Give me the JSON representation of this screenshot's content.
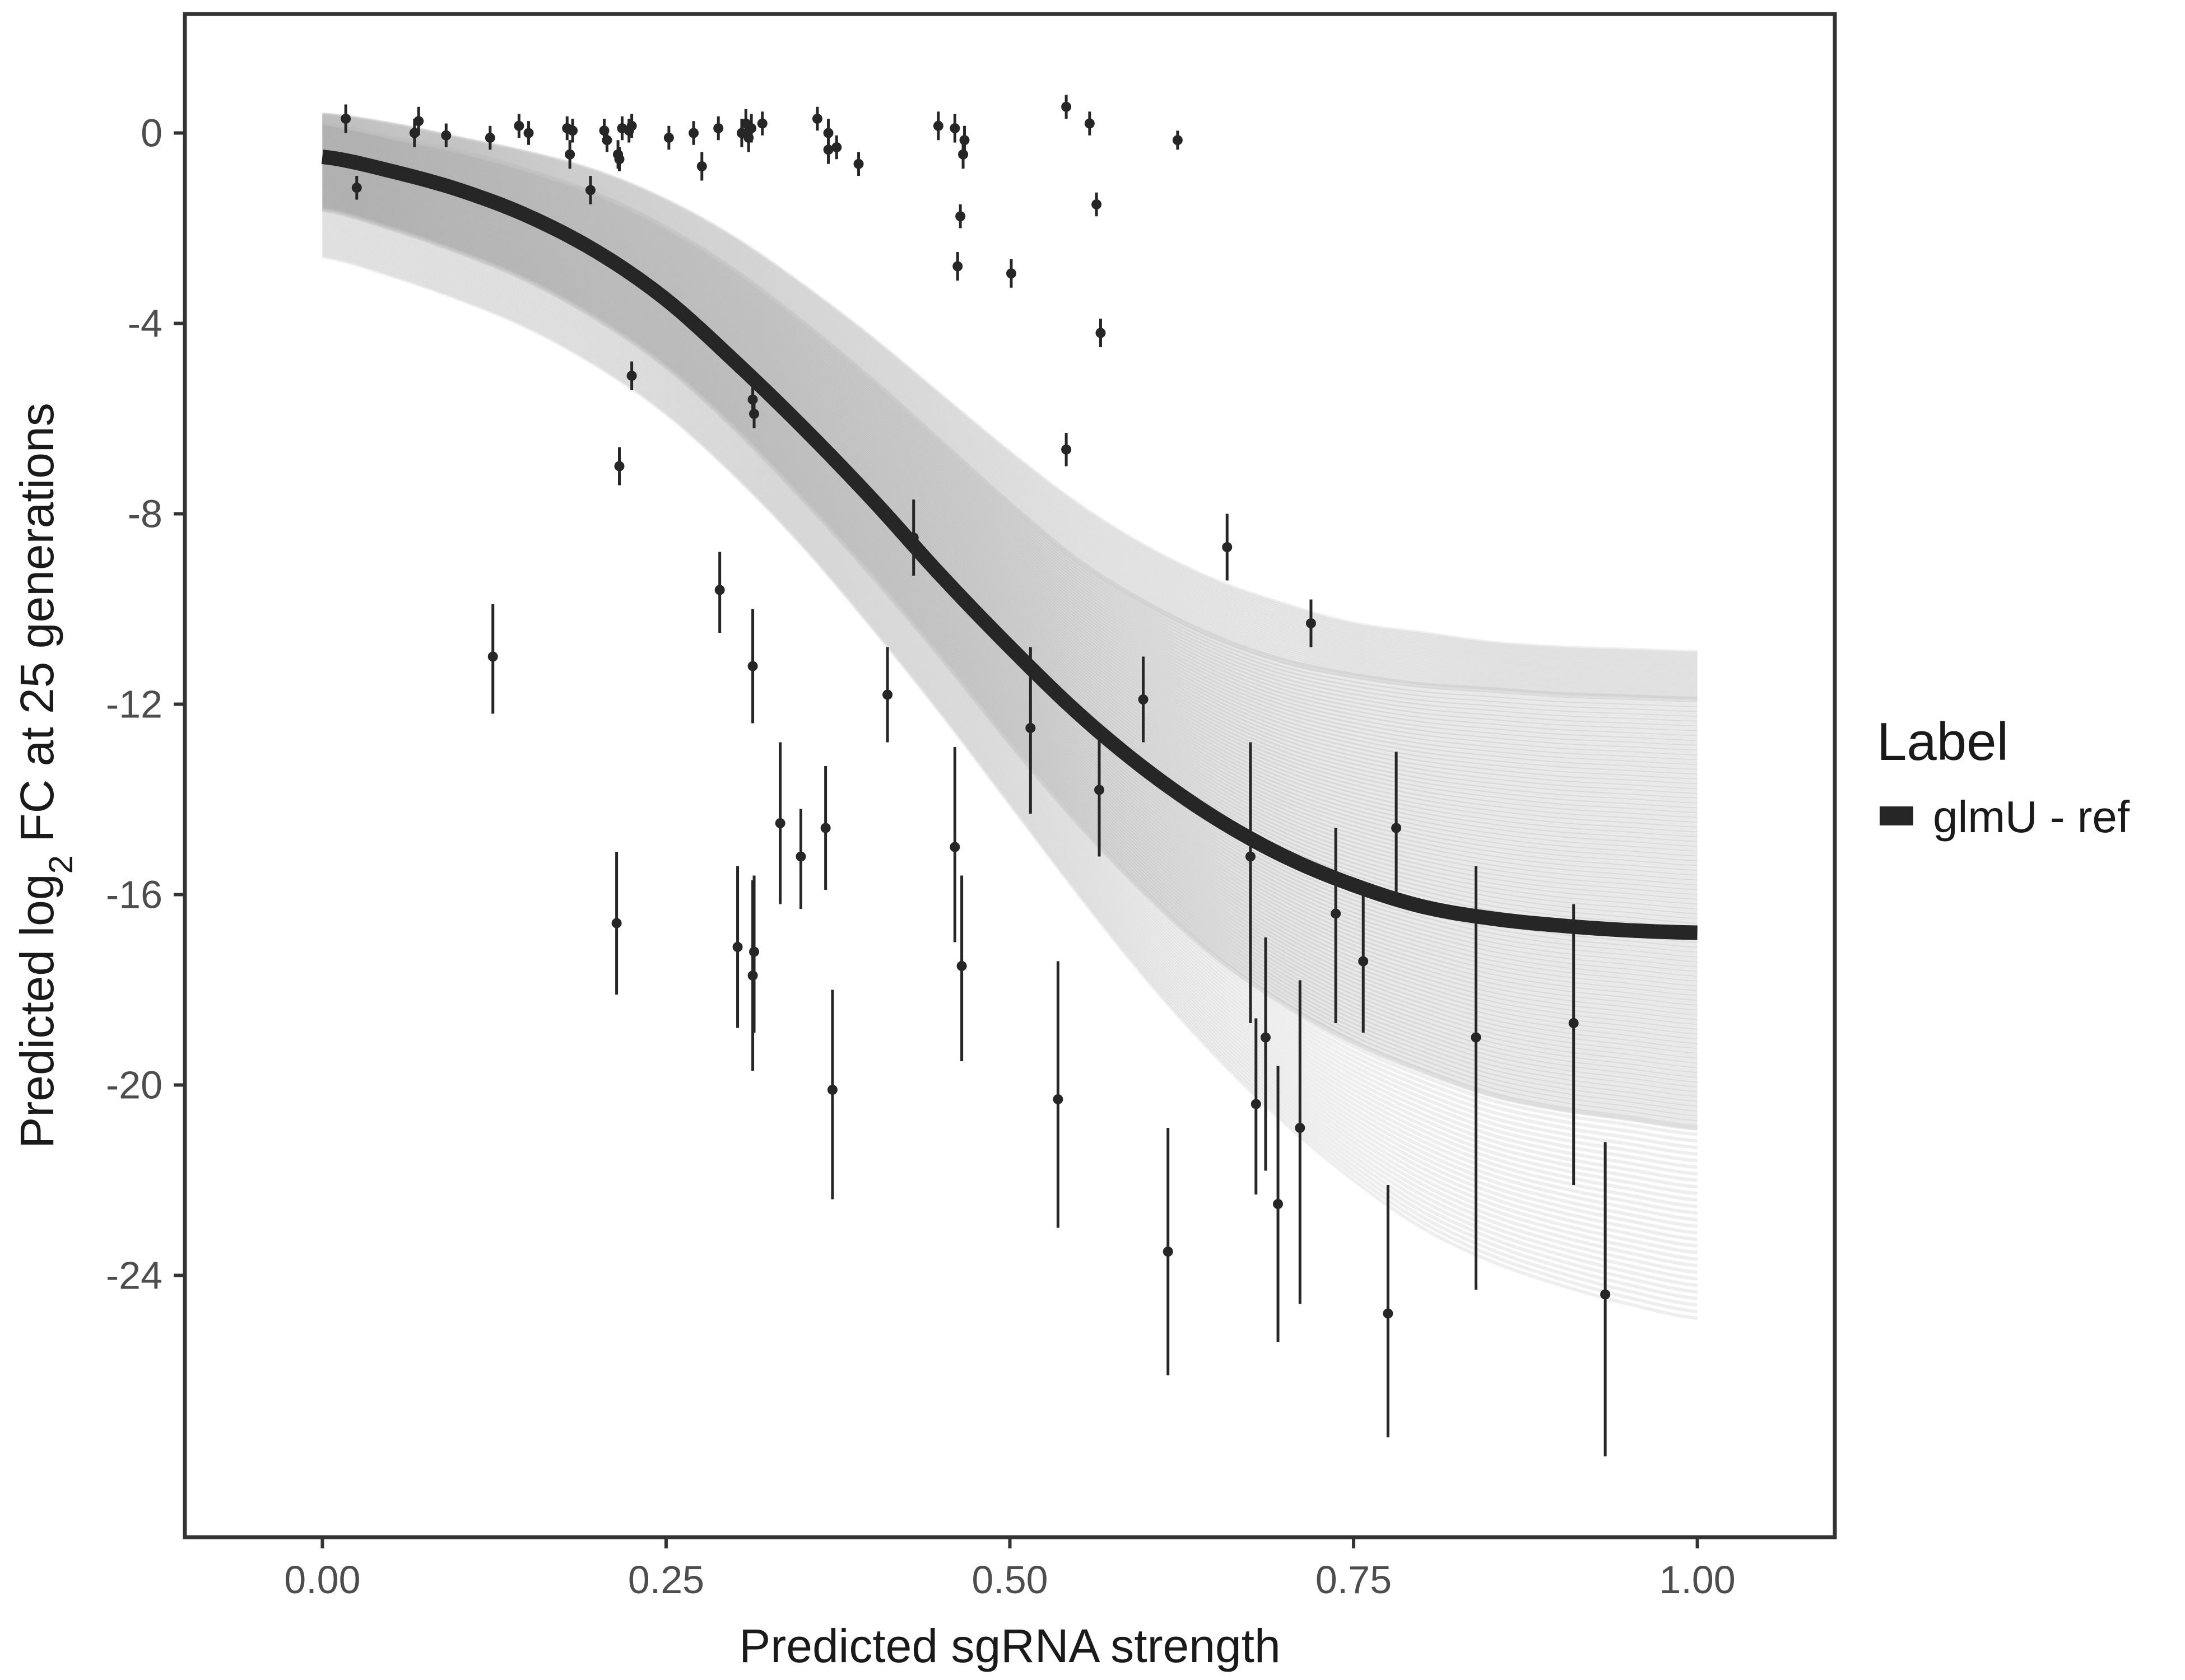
{
  "chart_data": {
    "type": "scatter",
    "xlabel": "Predicted sgRNA strength",
    "ylabel_prefix": "Predicted ",
    "ylabel_log": "log",
    "ylabel_sub": "2",
    "ylabel_suffix": " FC at 25 generations",
    "xlim": [
      -0.1,
      1.1
    ],
    "ylim": [
      -29.5,
      2.5
    ],
    "grid": false,
    "x_ticks": [
      0,
      0.25,
      0.5,
      0.75,
      1
    ],
    "x_tick_labels": [
      "0.00",
      "0.25",
      "0.50",
      "0.75",
      "1.00"
    ],
    "y_ticks": [
      0,
      -4,
      -8,
      -12,
      -16,
      -20,
      -24
    ],
    "y_tick_labels": [
      "0",
      "-4",
      "-8",
      "-12",
      "-16",
      "-20",
      "-24"
    ],
    "legend": {
      "title": "Label",
      "position": "right",
      "entries": [
        {
          "label": "glmU - ref",
          "color": "#262626"
        }
      ]
    },
    "fit": {
      "name": "glmU - ref",
      "color": "#262626",
      "x": [
        0,
        0.05,
        0.1,
        0.15,
        0.2,
        0.25,
        0.3,
        0.35,
        0.4,
        0.45,
        0.5,
        0.55,
        0.6,
        0.65,
        0.7,
        0.75,
        0.8,
        0.85,
        0.9,
        0.95,
        1.0
      ],
      "y": [
        -0.5,
        -0.8,
        -1.2,
        -1.75,
        -2.5,
        -3.5,
        -4.8,
        -6.2,
        -7.7,
        -9.3,
        -10.8,
        -12.2,
        -13.4,
        -14.4,
        -15.2,
        -15.8,
        -16.25,
        -16.5,
        -16.65,
        -16.75,
        -16.8
      ]
    },
    "posterior_band": {
      "color": "#999999",
      "x": [
        0,
        0.05,
        0.1,
        0.15,
        0.2,
        0.25,
        0.3,
        0.35,
        0.4,
        0.45,
        0.5,
        0.55,
        0.6,
        0.65,
        0.7,
        0.75,
        0.8,
        0.85,
        0.9,
        0.95,
        1.0
      ],
      "upper": [
        0.2,
        -0.1,
        -0.4,
        -0.8,
        -1.3,
        -2.0,
        -2.9,
        -4.0,
        -5.2,
        -6.5,
        -7.8,
        -9.0,
        -9.9,
        -10.6,
        -11.1,
        -11.4,
        -11.6,
        -11.7,
        -11.8,
        -11.85,
        -11.9
      ],
      "lower": [
        -1.6,
        -2.0,
        -2.5,
        -3.1,
        -3.9,
        -4.9,
        -6.2,
        -7.7,
        -9.3,
        -11.0,
        -12.8,
        -14.5,
        -16.0,
        -17.3,
        -18.3,
        -19.1,
        -19.7,
        -20.2,
        -20.5,
        -20.7,
        -20.9
      ],
      "outer_upper": [
        0.4,
        0.2,
        -0.1,
        -0.4,
        -0.8,
        -1.4,
        -2.2,
        -3.2,
        -4.3,
        -5.5,
        -6.7,
        -7.8,
        -8.7,
        -9.4,
        -9.9,
        -10.3,
        -10.5,
        -10.7,
        -10.8,
        -10.85,
        -10.9
      ],
      "outer_lower": [
        -2.6,
        -3.0,
        -3.5,
        -4.1,
        -4.9,
        -5.9,
        -7.2,
        -8.7,
        -10.4,
        -12.2,
        -14.1,
        -16.0,
        -17.8,
        -19.4,
        -20.8,
        -22.0,
        -23.0,
        -23.7,
        -24.2,
        -24.6,
        -24.9
      ]
    },
    "points": [
      {
        "x": 0.017,
        "y": 0.3,
        "lo": 0.0,
        "hi": 0.6
      },
      {
        "x": 0.025,
        "y": -1.15,
        "lo": -1.4,
        "hi": -0.9
      },
      {
        "x": 0.067,
        "y": 0.0,
        "lo": -0.3,
        "hi": 0.3
      },
      {
        "x": 0.07,
        "y": 0.25,
        "lo": -0.05,
        "hi": 0.55
      },
      {
        "x": 0.09,
        "y": -0.05,
        "lo": -0.3,
        "hi": 0.2
      },
      {
        "x": 0.122,
        "y": -0.1,
        "lo": -0.35,
        "hi": 0.15
      },
      {
        "x": 0.124,
        "y": -11.0,
        "lo": -12.2,
        "hi": -9.9
      },
      {
        "x": 0.143,
        "y": 0.15,
        "lo": -0.1,
        "hi": 0.4
      },
      {
        "x": 0.15,
        "y": 0.0,
        "lo": -0.25,
        "hi": 0.25
      },
      {
        "x": 0.178,
        "y": 0.1,
        "lo": -0.15,
        "hi": 0.35
      },
      {
        "x": 0.182,
        "y": 0.05,
        "lo": -0.2,
        "hi": 0.3
      },
      {
        "x": 0.18,
        "y": -0.45,
        "lo": -0.75,
        "hi": -0.15
      },
      {
        "x": 0.195,
        "y": -1.2,
        "lo": -1.5,
        "hi": -0.9
      },
      {
        "x": 0.205,
        "y": 0.05,
        "lo": -0.2,
        "hi": 0.3
      },
      {
        "x": 0.207,
        "y": -0.15,
        "lo": -0.4,
        "hi": 0.1
      },
      {
        "x": 0.215,
        "y": -0.45,
        "lo": -0.75,
        "hi": -0.15
      },
      {
        "x": 0.216,
        "y": -0.55,
        "lo": -0.8,
        "hi": -0.3
      },
      {
        "x": 0.218,
        "y": 0.1,
        "lo": -0.15,
        "hi": 0.35
      },
      {
        "x": 0.216,
        "y": -7.0,
        "lo": -7.4,
        "hi": -6.6
      },
      {
        "x": 0.214,
        "y": -16.6,
        "lo": -18.1,
        "hi": -15.1
      },
      {
        "x": 0.223,
        "y": 0.05,
        "lo": -0.2,
        "hi": 0.3
      },
      {
        "x": 0.225,
        "y": 0.15,
        "lo": -0.1,
        "hi": 0.4
      },
      {
        "x": 0.225,
        "y": -5.1,
        "lo": -5.4,
        "hi": -4.8
      },
      {
        "x": 0.252,
        "y": -0.1,
        "lo": -0.35,
        "hi": 0.15
      },
      {
        "x": 0.27,
        "y": 0.0,
        "lo": -0.25,
        "hi": 0.25
      },
      {
        "x": 0.276,
        "y": -0.7,
        "lo": -1.0,
        "hi": -0.4
      },
      {
        "x": 0.288,
        "y": 0.1,
        "lo": -0.15,
        "hi": 0.35
      },
      {
        "x": 0.289,
        "y": -9.6,
        "lo": -10.5,
        "hi": -8.8
      },
      {
        "x": 0.302,
        "y": -17.1,
        "lo": -18.8,
        "hi": -15.4
      },
      {
        "x": 0.305,
        "y": 0.0,
        "lo": -0.3,
        "hi": 0.3
      },
      {
        "x": 0.308,
        "y": 0.2,
        "lo": -0.1,
        "hi": 0.5
      },
      {
        "x": 0.31,
        "y": -0.1,
        "lo": -0.4,
        "hi": 0.2
      },
      {
        "x": 0.312,
        "y": 0.1,
        "lo": -0.2,
        "hi": 0.4
      },
      {
        "x": 0.313,
        "y": -5.6,
        "lo": -5.9,
        "hi": -5.3
      },
      {
        "x": 0.314,
        "y": -5.9,
        "lo": -6.2,
        "hi": -5.6
      },
      {
        "x": 0.313,
        "y": -11.2,
        "lo": -12.4,
        "hi": -10.0
      },
      {
        "x": 0.314,
        "y": -17.2,
        "lo": -18.9,
        "hi": -15.6
      },
      {
        "x": 0.313,
        "y": -17.7,
        "lo": -19.7,
        "hi": -15.7
      },
      {
        "x": 0.32,
        "y": 0.2,
        "lo": -0.05,
        "hi": 0.45
      },
      {
        "x": 0.333,
        "y": -14.5,
        "lo": -16.2,
        "hi": -12.8
      },
      {
        "x": 0.348,
        "y": -15.2,
        "lo": -16.3,
        "hi": -14.2
      },
      {
        "x": 0.36,
        "y": 0.3,
        "lo": 0.05,
        "hi": 0.55
      },
      {
        "x": 0.366,
        "y": -14.6,
        "lo": -15.9,
        "hi": -13.3
      },
      {
        "x": 0.368,
        "y": 0.0,
        "lo": -0.3,
        "hi": 0.3
      },
      {
        "x": 0.368,
        "y": -0.35,
        "lo": -0.65,
        "hi": -0.05
      },
      {
        "x": 0.371,
        "y": -20.1,
        "lo": -22.4,
        "hi": -18.0
      },
      {
        "x": 0.374,
        "y": -0.3,
        "lo": -0.55,
        "hi": -0.05
      },
      {
        "x": 0.39,
        "y": -0.65,
        "lo": -0.9,
        "hi": -0.4
      },
      {
        "x": 0.411,
        "y": -11.8,
        "lo": -12.8,
        "hi": -10.8
      },
      {
        "x": 0.43,
        "y": -8.5,
        "lo": -9.3,
        "hi": -7.7
      },
      {
        "x": 0.448,
        "y": 0.15,
        "lo": -0.15,
        "hi": 0.45
      },
      {
        "x": 0.46,
        "y": 0.1,
        "lo": -0.2,
        "hi": 0.4
      },
      {
        "x": 0.46,
        "y": -15.0,
        "lo": -17.0,
        "hi": -12.9
      },
      {
        "x": 0.462,
        "y": -2.8,
        "lo": -3.1,
        "hi": -2.5
      },
      {
        "x": 0.464,
        "y": -1.75,
        "lo": -2.0,
        "hi": -1.5
      },
      {
        "x": 0.465,
        "y": -17.5,
        "lo": -19.5,
        "hi": -15.6
      },
      {
        "x": 0.467,
        "y": -0.15,
        "lo": -0.45,
        "hi": 0.15
      },
      {
        "x": 0.466,
        "y": -0.45,
        "lo": -0.75,
        "hi": -0.15
      },
      {
        "x": 0.501,
        "y": -2.95,
        "lo": -3.25,
        "hi": -2.65
      },
      {
        "x": 0.515,
        "y": -12.5,
        "lo": -14.3,
        "hi": -10.8
      },
      {
        "x": 0.535,
        "y": -20.3,
        "lo": -23.0,
        "hi": -17.4
      },
      {
        "x": 0.541,
        "y": 0.55,
        "lo": 0.3,
        "hi": 0.8
      },
      {
        "x": 0.541,
        "y": -6.65,
        "lo": -7.0,
        "hi": -6.3
      },
      {
        "x": 0.558,
        "y": 0.2,
        "lo": -0.05,
        "hi": 0.45
      },
      {
        "x": 0.563,
        "y": -1.5,
        "lo": -1.75,
        "hi": -1.25
      },
      {
        "x": 0.565,
        "y": -13.8,
        "lo": -15.2,
        "hi": -12.6
      },
      {
        "x": 0.566,
        "y": -4.2,
        "lo": -4.5,
        "hi": -3.9
      },
      {
        "x": 0.597,
        "y": -11.9,
        "lo": -12.8,
        "hi": -11.0
      },
      {
        "x": 0.615,
        "y": -23.5,
        "lo": -26.1,
        "hi": -20.9
      },
      {
        "x": 0.622,
        "y": -0.15,
        "lo": -0.35,
        "hi": 0.05
      },
      {
        "x": 0.658,
        "y": -8.7,
        "lo": -9.4,
        "hi": -8.0
      },
      {
        "x": 0.675,
        "y": -15.2,
        "lo": -18.7,
        "hi": -12.8
      },
      {
        "x": 0.679,
        "y": -20.4,
        "lo": -22.3,
        "hi": -18.6
      },
      {
        "x": 0.686,
        "y": -19.0,
        "lo": -21.8,
        "hi": -16.9
      },
      {
        "x": 0.695,
        "y": -22.5,
        "lo": -25.4,
        "hi": -19.6
      },
      {
        "x": 0.711,
        "y": -20.9,
        "lo": -24.6,
        "hi": -17.8
      },
      {
        "x": 0.719,
        "y": -10.3,
        "lo": -10.8,
        "hi": -9.8
      },
      {
        "x": 0.737,
        "y": -16.4,
        "lo": -18.7,
        "hi": -14.6
      },
      {
        "x": 0.757,
        "y": -17.4,
        "lo": -18.9,
        "hi": -16.0
      },
      {
        "x": 0.775,
        "y": -24.8,
        "lo": -27.4,
        "hi": -22.1
      },
      {
        "x": 0.781,
        "y": -14.6,
        "lo": -16.2,
        "hi": -13.0
      },
      {
        "x": 0.839,
        "y": -19.0,
        "lo": -24.3,
        "hi": -15.4
      },
      {
        "x": 0.91,
        "y": -18.7,
        "lo": -22.1,
        "hi": -16.2
      },
      {
        "x": 0.933,
        "y": -24.4,
        "lo": -27.8,
        "hi": -21.2
      }
    ]
  }
}
